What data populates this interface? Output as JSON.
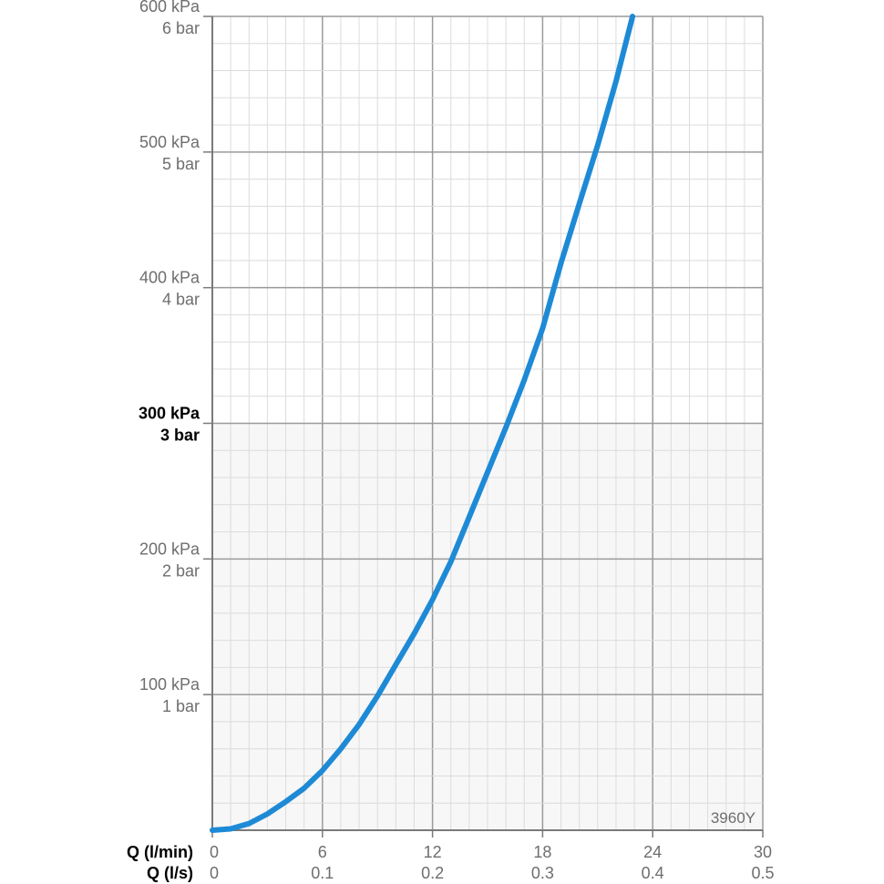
{
  "chart_data": {
    "type": "line",
    "x_unit_label": "Q (l/min)",
    "x2_unit_label": "Q (l/s)",
    "xlim": [
      0,
      30
    ],
    "ylim": [
      0,
      600
    ],
    "x_ticks": [
      {
        "value": 0,
        "label": "0",
        "label2": "0"
      },
      {
        "value": 6,
        "label": "6",
        "label2": "0.1"
      },
      {
        "value": 12,
        "label": "12",
        "label2": "0.2"
      },
      {
        "value": 18,
        "label": "18",
        "label2": "0.3"
      },
      {
        "value": 24,
        "label": "24",
        "label2": "0.4"
      },
      {
        "value": 30,
        "label": "30",
        "label2": "0.5"
      }
    ],
    "y_ticks": [
      {
        "value": 100,
        "label": "100 kPa",
        "label2": "1 bar",
        "emphasis": false
      },
      {
        "value": 200,
        "label": "200 kPa",
        "label2": "2 bar",
        "emphasis": false
      },
      {
        "value": 300,
        "label": "300 kPa",
        "label2": "3 bar",
        "emphasis": true
      },
      {
        "value": 400,
        "label": "400 kPa",
        "label2": "4 bar",
        "emphasis": false
      },
      {
        "value": 500,
        "label": "500 kPa",
        "label2": "5 bar",
        "emphasis": false
      },
      {
        "value": 600,
        "label": "600 kPa",
        "label2": "6 bar",
        "emphasis": false
      }
    ],
    "series": [
      {
        "color": "#1e8ad6",
        "x": [
          0,
          1,
          2,
          3,
          4,
          5,
          6,
          7,
          8,
          9,
          10,
          11,
          12,
          13,
          14,
          15,
          16,
          17,
          18,
          19,
          20,
          21,
          22,
          22.9
        ],
        "y": [
          0,
          1,
          5,
          12,
          21,
          31,
          44,
          60,
          78,
          99,
          122,
          145,
          170,
          198,
          231,
          264,
          297,
          332,
          370,
          418,
          462,
          505,
          552,
          600
        ]
      }
    ],
    "grid": true,
    "shaded_region": {
      "y_from": 0,
      "y_to": 300,
      "color": "#f7f7f7"
    },
    "model_code": "3960Y"
  }
}
